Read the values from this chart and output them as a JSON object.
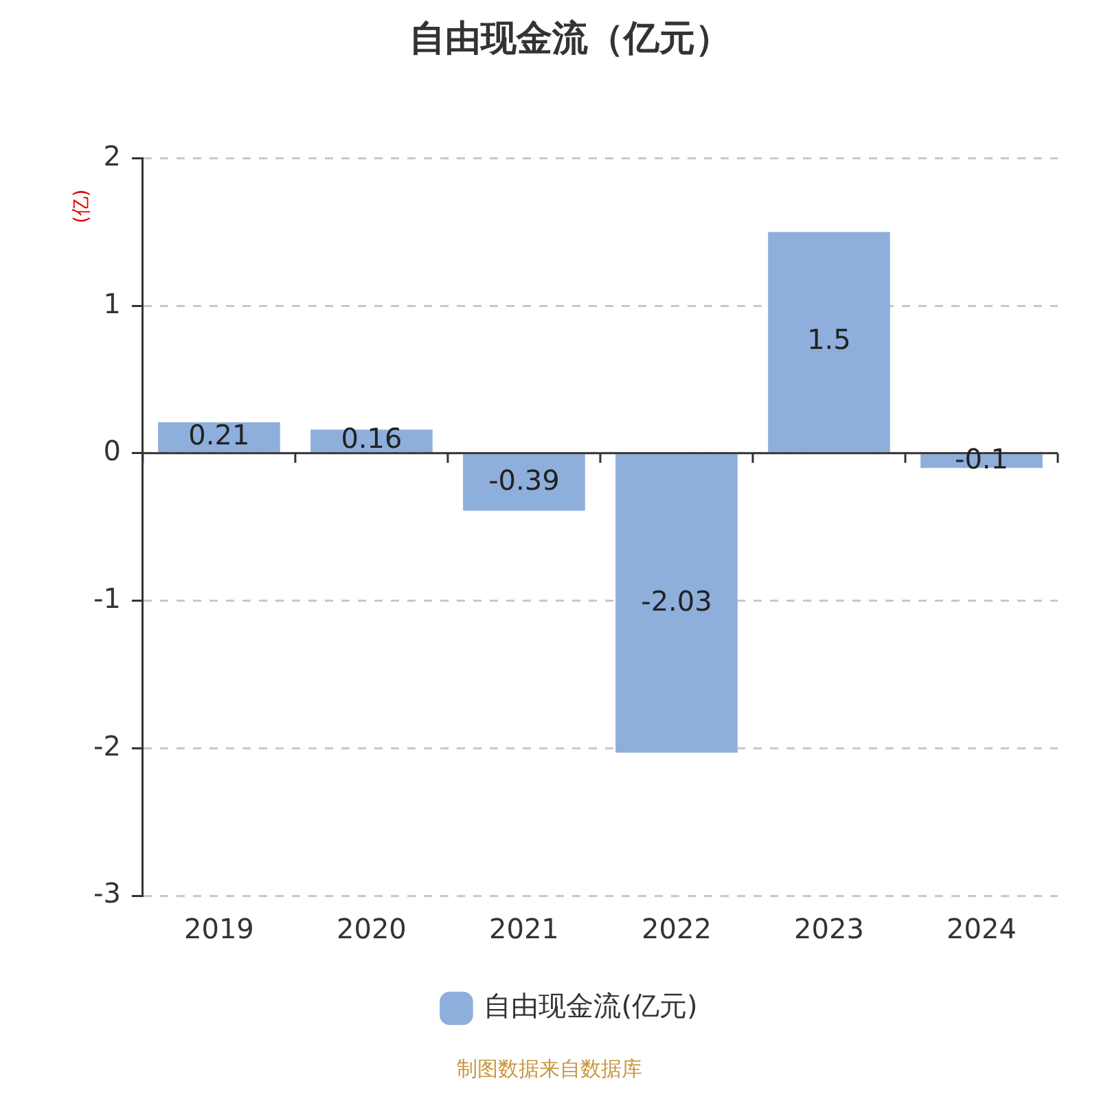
{
  "chart_data": {
    "type": "bar",
    "title": "自由现金流（亿元）",
    "ylabel": "(亿)",
    "categories": [
      "2019",
      "2020",
      "2021",
      "2022",
      "2023",
      "2024"
    ],
    "series": [
      {
        "name": "自由现金流(亿元)",
        "color": "#8eaedb",
        "values": [
          0.21,
          0.16,
          -0.39,
          -2.03,
          1.5,
          -0.1
        ]
      }
    ],
    "ylim": [
      -3,
      2
    ],
    "yticks": [
      -3,
      -2,
      -1,
      0,
      1,
      2
    ],
    "grid": "y",
    "legend": "bottom",
    "data_labels": true,
    "annotations": [
      "制图数据来自数据库"
    ]
  }
}
